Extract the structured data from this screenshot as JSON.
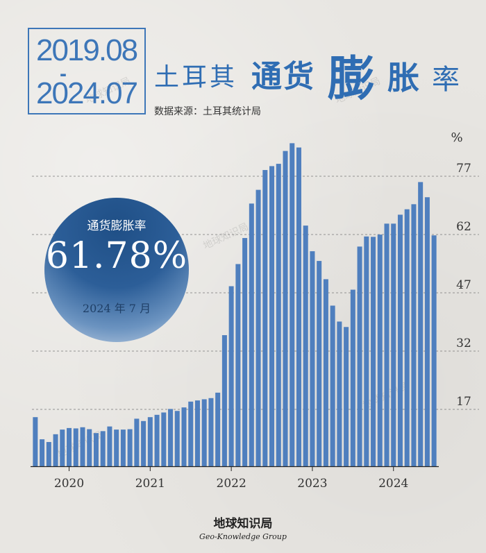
{
  "header": {
    "date_start": "2019.08",
    "date_dash": "-",
    "date_end": "2024.07",
    "title_part1": "土耳其",
    "title_part2": "通货",
    "title_part3": "膨",
    "title_part4": "胀",
    "title_part5": "率",
    "source": "数据来源：土耳其统计局"
  },
  "badge": {
    "title": "通货膨胀率",
    "value": "61.78%",
    "date": "2024 年 7 月"
  },
  "footer": {
    "brand": "地球知识局",
    "brand_en": "Geo-Knowledge Group"
  },
  "watermark": "地球知识局",
  "colors": {
    "bar": "#4f7fbe",
    "title": "#2f6db3",
    "badge_dark": "#1f4f86"
  },
  "chart_data": {
    "type": "bar",
    "x_tick_labels": [
      "2020",
      "2021",
      "2022",
      "2023",
      "2024"
    ],
    "y_unit": "%",
    "y_ticks": [
      17,
      32,
      47,
      62,
      77
    ],
    "ylim": [
      2,
      82
    ],
    "grid": "dashed horizontal",
    "start": "2019-08",
    "end": "2024-07",
    "values": [
      15.0,
      9.3,
      8.6,
      10.6,
      11.8,
      12.2,
      12.1,
      12.4,
      11.9,
      10.9,
      11.4,
      12.6,
      11.8,
      11.8,
      11.9,
      14.6,
      14.0,
      15.0,
      15.6,
      16.2,
      17.1,
      16.6,
      17.5,
      19.0,
      19.3,
      19.6,
      19.9,
      21.3,
      36.1,
      48.7,
      54.4,
      61.1,
      69.97,
      73.5,
      78.6,
      79.6,
      80.2,
      83.5,
      85.5,
      84.4,
      64.3,
      57.7,
      55.2,
      50.5,
      43.7,
      39.6,
      38.2,
      47.8,
      58.9,
      61.5,
      61.4,
      61.98,
      64.8,
      64.8,
      67.1,
      68.5,
      69.8,
      75.5,
      71.6,
      61.78
    ]
  }
}
